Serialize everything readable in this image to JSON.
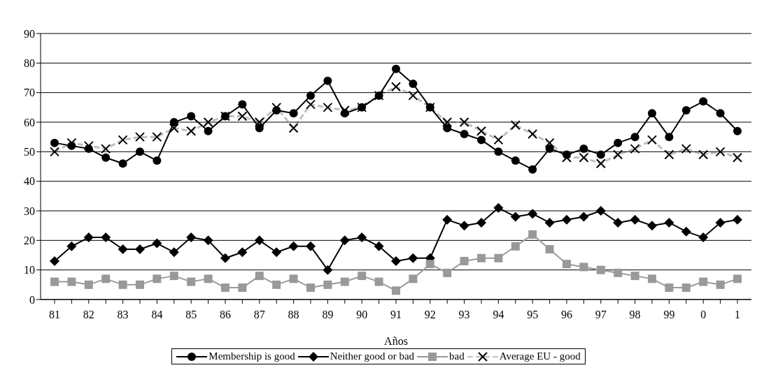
{
  "chart_data": {
    "type": "line",
    "xlabel": "Años",
    "categories": [
      "81",
      null,
      "82",
      null,
      "83",
      null,
      "84",
      null,
      "85",
      null,
      "86",
      null,
      "87",
      null,
      "88",
      null,
      "89",
      null,
      "90",
      null,
      "91",
      null,
      "92",
      null,
      "93",
      null,
      "94",
      null,
      "95",
      null,
      "96",
      null,
      "97",
      null,
      "98",
      null,
      "99",
      null,
      "0",
      null,
      "1"
    ],
    "series": [
      {
        "name": "Membership is good",
        "color": "#000000",
        "marker": "circle",
        "line_style": "solid",
        "values": [
          53,
          52,
          51,
          48,
          46,
          50,
          47,
          60,
          62,
          57,
          62,
          66,
          58,
          64,
          63,
          69,
          74,
          63,
          65,
          69,
          78,
          73,
          65,
          58,
          56,
          54,
          50,
          47,
          44,
          51,
          49,
          51,
          49,
          53,
          55,
          63,
          55,
          64,
          67,
          63,
          57
        ]
      },
      {
        "name": "Neither good or bad",
        "color": "#000000",
        "marker": "diamond",
        "line_style": "solid",
        "values": [
          13,
          18,
          21,
          21,
          17,
          17,
          19,
          16,
          21,
          20,
          14,
          16,
          20,
          16,
          18,
          18,
          10,
          20,
          21,
          18,
          13,
          14,
          14,
          27,
          25,
          26,
          31,
          28,
          29,
          26,
          27,
          28,
          30,
          26,
          27,
          25,
          26,
          23,
          21,
          26,
          27
        ]
      },
      {
        "name": "bad",
        "color": "#999999",
        "marker": "square",
        "line_style": "solid",
        "values": [
          6,
          6,
          5,
          7,
          5,
          5,
          7,
          8,
          6,
          7,
          4,
          4,
          8,
          5,
          7,
          4,
          5,
          6,
          8,
          6,
          3,
          7,
          12,
          9,
          13,
          14,
          14,
          18,
          22,
          17,
          12,
          11,
          10,
          9,
          8,
          7,
          4,
          4,
          6,
          5,
          7
        ]
      },
      {
        "name": "Average EU - good",
        "color": "#000000",
        "marker": "cross",
        "line_style": "dashed",
        "values": [
          50,
          53,
          52,
          51,
          54,
          55,
          55,
          58,
          57,
          60,
          62,
          62,
          60,
          65,
          58,
          66,
          65,
          64,
          65,
          69,
          72,
          69,
          65,
          60,
          60,
          57,
          54,
          59,
          56,
          53,
          48,
          48,
          46,
          49,
          51,
          54,
          49,
          51,
          49,
          50,
          48
        ]
      }
    ],
    "ylim": [
      0,
      90
    ],
    "yticks": [
      0,
      10,
      20,
      30,
      40,
      50,
      60,
      70,
      80,
      90
    ],
    "grid": "y",
    "legend": "bottom"
  }
}
